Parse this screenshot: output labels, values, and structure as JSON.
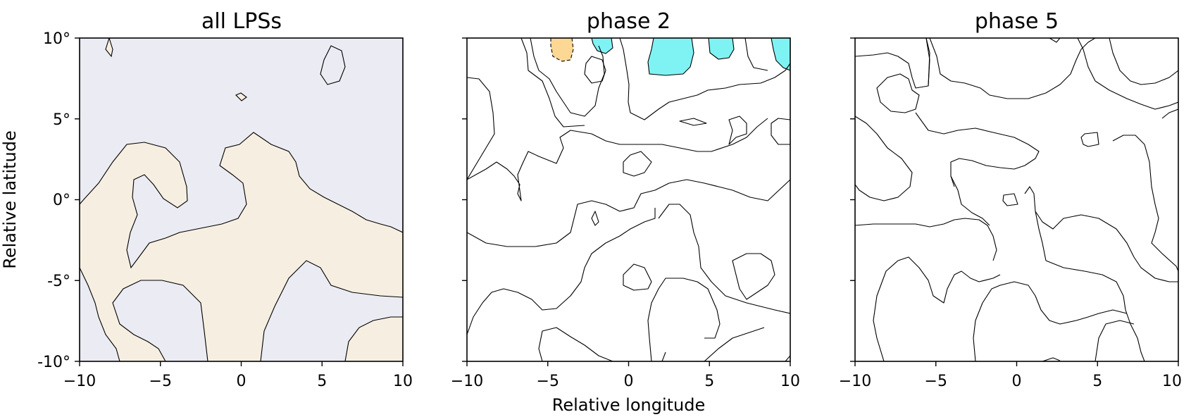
{
  "chart_data": [
    {
      "type": "heatmap",
      "title": "all LPSs",
      "xlabel": "",
      "ylabel": "Relative latitude",
      "xlim": [
        -10,
        10
      ],
      "ylim": [
        -10,
        10
      ],
      "xticks": [
        "−10",
        "−5",
        "0",
        "5",
        "10"
      ],
      "yticks": [
        "10°",
        "5°",
        "0°",
        "-5°",
        "-10°"
      ],
      "colors": {
        "positive": "#f6efe1",
        "negative": "#ebebf3",
        "background": "#f6efe1"
      }
    },
    {
      "type": "heatmap",
      "title": "phase 2",
      "xlabel": "Relative longitude",
      "ylabel": "",
      "xlim": [
        -10,
        10
      ],
      "ylim": [
        -10,
        10
      ],
      "xticks": [
        "−10",
        "−5",
        "0",
        "5",
        "10"
      ],
      "yticks": [],
      "colors": {
        "positive": "#fdd895",
        "negative": "#7ff3f3",
        "background": "#ffffff"
      }
    },
    {
      "type": "heatmap",
      "title": "phase 5",
      "xlabel": "",
      "ylabel": "",
      "xlim": [
        -10,
        10
      ],
      "ylim": [
        -10,
        10
      ],
      "xticks": [
        "−10",
        "−5",
        "0",
        "5",
        "10"
      ],
      "yticks": [],
      "colors": {
        "background": "#ffffff"
      }
    }
  ]
}
